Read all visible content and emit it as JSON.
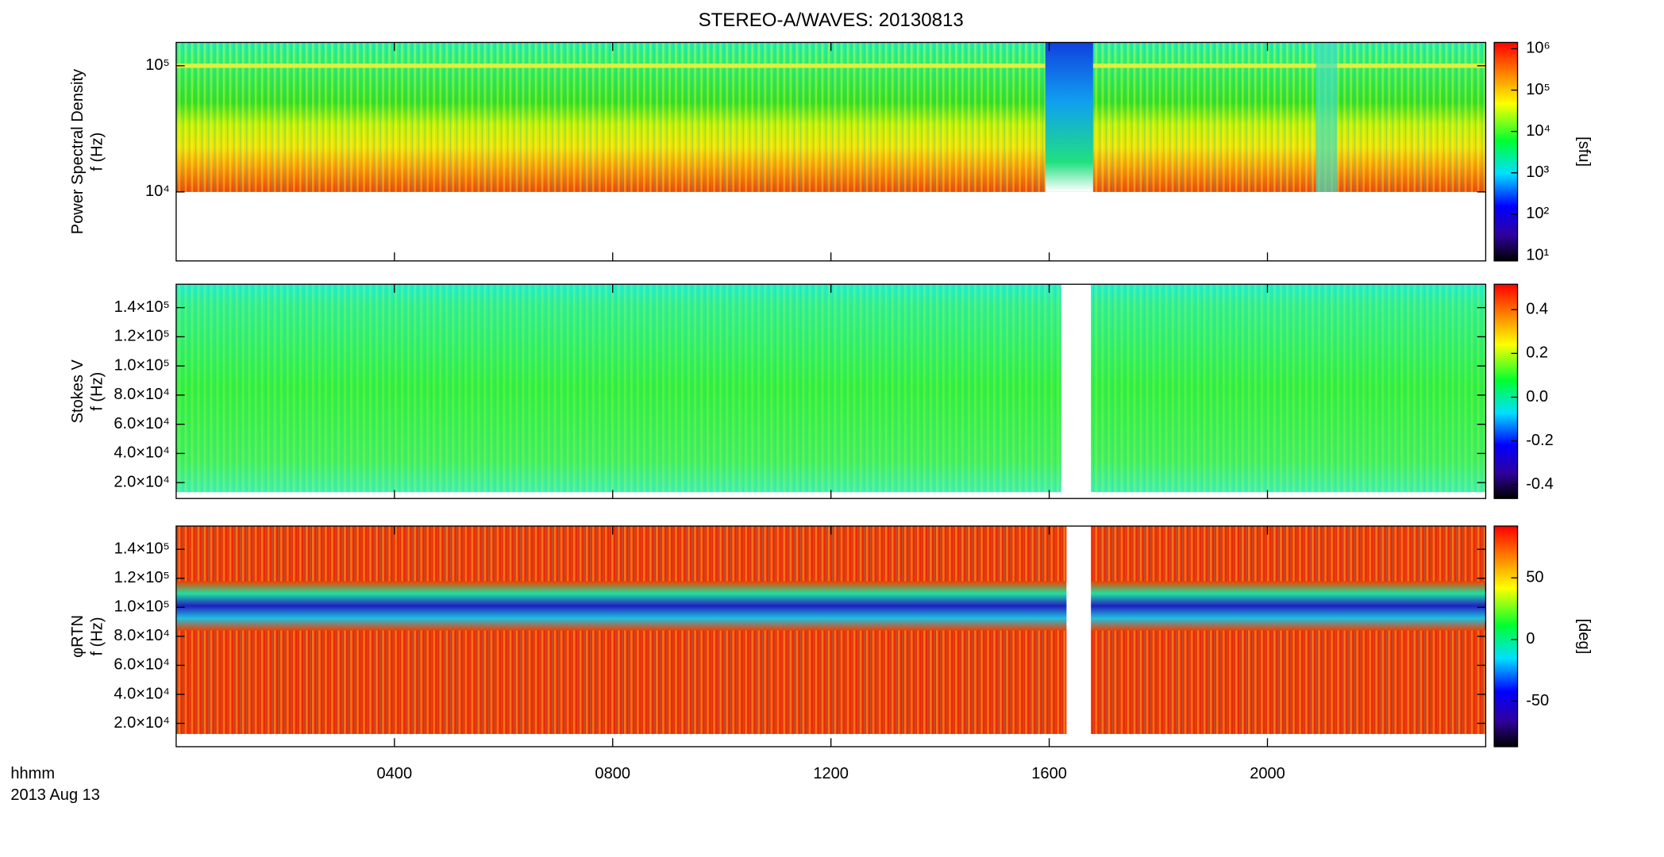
{
  "title": "STEREO-A/WAVES: 20130813",
  "x_label": [
    "hhmm",
    "2013 Aug 13"
  ],
  "chart_data": [
    {
      "type": "heatmap",
      "ylabel": [
        "Power Spectral Density",
        "f (Hz)"
      ],
      "ylog": true,
      "ylim": [
        2840,
        153000
      ],
      "yticks": [
        {
          "value": 10000,
          "label": "10⁴"
        },
        {
          "value": 100000,
          "label": "10⁵"
        }
      ],
      "xlim": [
        0,
        24
      ],
      "xticks": [
        {
          "value": 4,
          "label": "0400"
        },
        {
          "value": 8,
          "label": "0800"
        },
        {
          "value": 12,
          "label": "1200"
        },
        {
          "value": 16,
          "label": "1600"
        },
        {
          "value": 20,
          "label": "2000"
        }
      ],
      "colorbar": {
        "log": true,
        "lim": [
          7.4,
          1420000
        ],
        "label": "[sfu]",
        "ticks": [
          {
            "value": 10,
            "label": "10¹"
          },
          {
            "value": 100,
            "label": "10²"
          },
          {
            "value": 1000,
            "label": "10³"
          },
          {
            "value": 10000,
            "label": "10⁴"
          },
          {
            "value": 100000,
            "label": "10⁵"
          },
          {
            "value": 1000000,
            "label": "10⁶"
          }
        ]
      }
    },
    {
      "type": "heatmap",
      "ylabel": [
        "Stokes V",
        "f (Hz)"
      ],
      "ylog": false,
      "ylim": [
        9100,
        156000
      ],
      "yticks": [
        {
          "value": 20000,
          "label": "2.0×10⁴"
        },
        {
          "value": 40000,
          "label": "4.0×10⁴"
        },
        {
          "value": 60000,
          "label": "6.0×10⁴"
        },
        {
          "value": 80000,
          "label": "8.0×10⁴"
        },
        {
          "value": 100000,
          "label": "1.0×10⁵"
        },
        {
          "value": 120000,
          "label": "1.2×10⁵"
        },
        {
          "value": 140000,
          "label": "1.4×10⁵"
        }
      ],
      "xlim": [
        0,
        24
      ],
      "xticks": [
        {
          "value": 4,
          "label": "0400"
        },
        {
          "value": 8,
          "label": "0800"
        },
        {
          "value": 12,
          "label": "1200"
        },
        {
          "value": 16,
          "label": "1600"
        },
        {
          "value": 20,
          "label": "2000"
        }
      ],
      "colorbar": {
        "log": false,
        "lim": [
          -0.463,
          0.516
        ],
        "label": null,
        "ticks": [
          -0.4,
          -0.2,
          {
            "value": 0,
            "label": "0.0"
          },
          0.2,
          0.4
        ]
      }
    },
    {
      "type": "heatmap",
      "ylabel": [
        "φRTN",
        "f (Hz)"
      ],
      "ylog": false,
      "ylim": [
        3900,
        156000
      ],
      "yticks": [
        {
          "value": 20000,
          "label": "2.0×10⁴"
        },
        {
          "value": 40000,
          "label": "4.0×10⁴"
        },
        {
          "value": 60000,
          "label": "6.0×10⁴"
        },
        {
          "value": 80000,
          "label": "8.0×10⁴"
        },
        {
          "value": 100000,
          "label": "1.0×10⁵"
        },
        {
          "value": 120000,
          "label": "1.2×10⁵"
        },
        {
          "value": 140000,
          "label": "1.4×10⁵"
        }
      ],
      "xlim": [
        0,
        24
      ],
      "xticks": [
        {
          "value": 4,
          "label": "0400"
        },
        {
          "value": 8,
          "label": "0800"
        },
        {
          "value": 12,
          "label": "1200"
        },
        {
          "value": 16,
          "label": "1600"
        },
        {
          "value": 20,
          "label": "2000"
        }
      ],
      "colorbar": {
        "log": false,
        "lim": [
          -87,
          92
        ],
        "label": "[deg]",
        "ticks": [
          -50,
          0,
          50
        ]
      }
    }
  ]
}
